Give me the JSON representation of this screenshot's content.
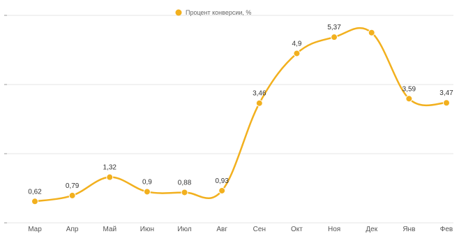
{
  "chart_data": {
    "type": "line",
    "legend": {
      "label": "Процент конверсии, %",
      "placement": "top-center",
      "marker": "circle"
    },
    "categories": [
      "Мар",
      "Апр",
      "Май",
      "Июн",
      "Июл",
      "Авг",
      "Сен",
      "Окт",
      "Ноя",
      "Дек",
      "Янв",
      "Фев"
    ],
    "series": [
      {
        "name": "Процент конверсии, %",
        "values": [
          0.62,
          0.79,
          1.32,
          0.9,
          0.88,
          0.93,
          3.46,
          4.9,
          5.37,
          5.5,
          3.59,
          3.47
        ],
        "data_labels": [
          "0,62",
          "0,79",
          "1,32",
          "0,9",
          "0,88",
          "0,93",
          "3,46",
          "4,9",
          "5,37",
          "",
          "3,59",
          "3,47"
        ]
      }
    ],
    "ylim": [
      0,
      6
    ],
    "grid": true,
    "line_style": "smooth",
    "colors": {
      "series": "#f2b01e",
      "grid": "#e6e6e6",
      "axis_text": "#555555"
    },
    "xlabel": "",
    "ylabel": ""
  }
}
